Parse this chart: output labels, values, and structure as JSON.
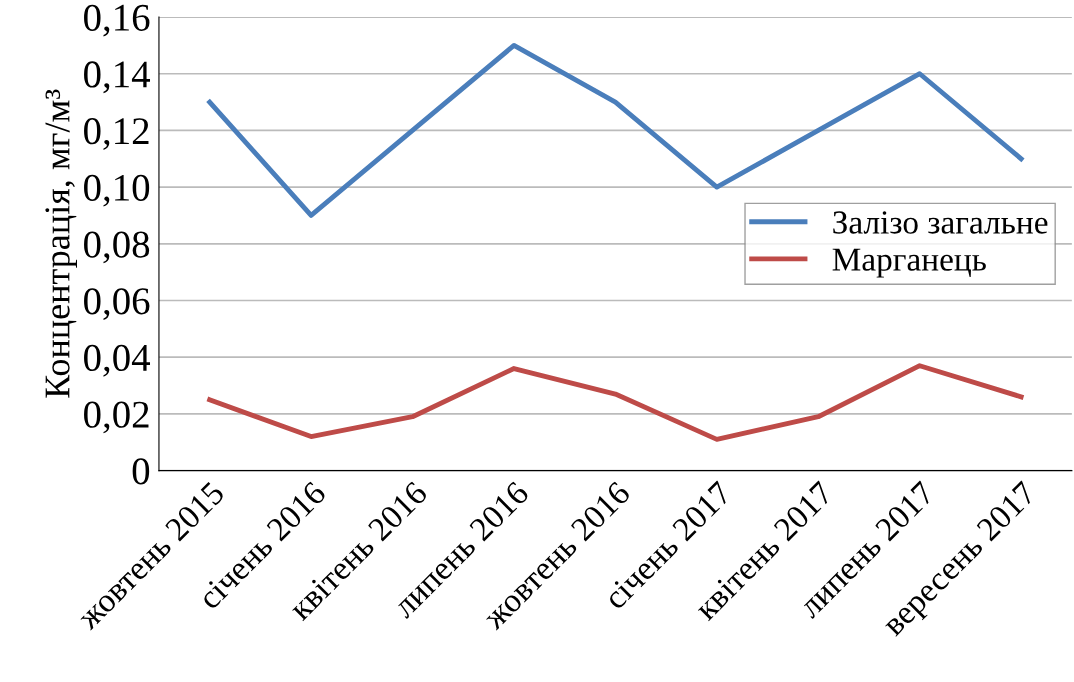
{
  "chart_data": {
    "type": "line",
    "ylabel": "Концентрація, мг/м³",
    "categories": [
      "жовтень 2015",
      "січень 2016",
      "квітень 2016",
      "липень 2016",
      "жовтень 2016",
      "січень 2017",
      "квітень 2017",
      "липень 2017",
      "вересень 2017"
    ],
    "series": [
      {
        "name": "Залізо загальне",
        "color": "#4a7ebb",
        "values": [
          0.13,
          0.09,
          0.12,
          0.15,
          0.13,
          0.1,
          0.12,
          0.14,
          0.11
        ]
      },
      {
        "name": "Марганець",
        "color": "#be4b48",
        "values": [
          0.025,
          0.012,
          0.019,
          0.036,
          0.027,
          0.011,
          0.019,
          0.037,
          0.026
        ]
      }
    ],
    "ylim": [
      0,
      0.16
    ],
    "yticks": [
      {
        "value": 0,
        "label": "0"
      },
      {
        "value": 0.02,
        "label": "0,02"
      },
      {
        "value": 0.04,
        "label": "0,04"
      },
      {
        "value": 0.06,
        "label": "0,06"
      },
      {
        "value": 0.08,
        "label": "0,08"
      },
      {
        "value": 0.1,
        "label": "0,10"
      },
      {
        "value": 0.12,
        "label": "0,12"
      },
      {
        "value": 0.14,
        "label": "0,14"
      },
      {
        "value": 0.16,
        "label": "0,16"
      }
    ],
    "grid": "y",
    "legend": "right",
    "marker": "none",
    "line_style": "solid"
  }
}
